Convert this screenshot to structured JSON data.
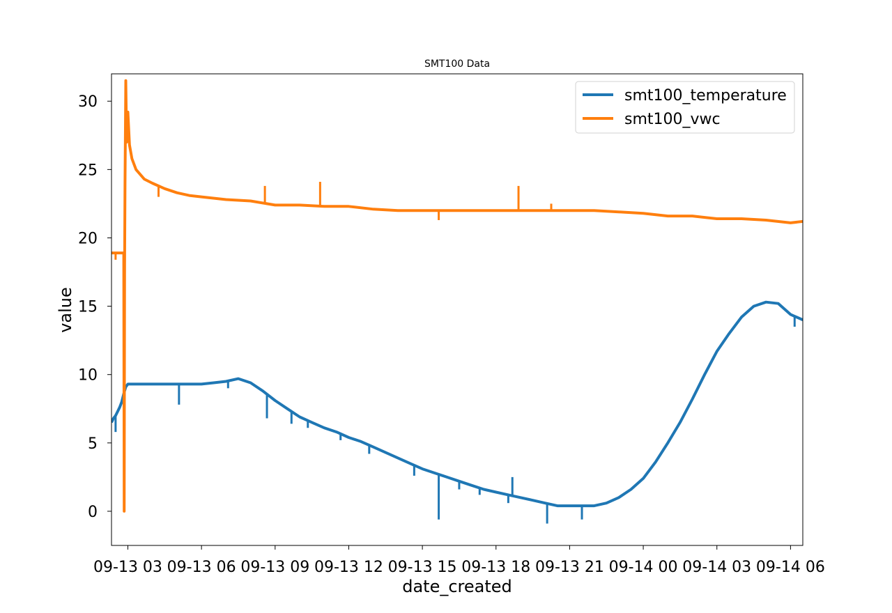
{
  "chart_data": {
    "type": "line",
    "title": "SMT100 Data",
    "xlabel": "date_created",
    "ylabel": "value",
    "xlim": [
      "2023-09-13T02:20",
      "2023-09-14T06:30"
    ],
    "ylim": [
      -2.5,
      32
    ],
    "x_ticks": [
      "09-13 03",
      "09-13 06",
      "09-13 09",
      "09-13 12",
      "09-13 15",
      "09-13 18",
      "09-13 21",
      "09-14 00",
      "09-14 03",
      "09-14 06"
    ],
    "y_ticks": [
      "0",
      "5",
      "10",
      "15",
      "20",
      "25",
      "30"
    ],
    "grid": false,
    "legend_position": "upper right",
    "series": [
      {
        "name": "smt100_temperature",
        "color": "#1f77b4",
        "points": [
          [
            "2023-09-13T02:20",
            6.5
          ],
          [
            "2023-09-13T02:25",
            6.8
          ],
          [
            "2023-09-13T02:30",
            7.0
          ],
          [
            "2023-09-13T02:35",
            7.3
          ],
          [
            "2023-09-13T02:40",
            7.6
          ],
          [
            "2023-09-13T02:45",
            8.0
          ],
          [
            "2023-09-13T02:50",
            8.6
          ],
          [
            "2023-09-13T02:55",
            9.1
          ],
          [
            "2023-09-13T03:00",
            9.3
          ],
          [
            "2023-09-13T03:30",
            9.3
          ],
          [
            "2023-09-13T04:00",
            9.3
          ],
          [
            "2023-09-13T04:30",
            9.3
          ],
          [
            "2023-09-13T05:00",
            9.3
          ],
          [
            "2023-09-13T05:30",
            9.3
          ],
          [
            "2023-09-13T06:00",
            9.3
          ],
          [
            "2023-09-13T06:30",
            9.4
          ],
          [
            "2023-09-13T07:00",
            9.5
          ],
          [
            "2023-09-13T07:30",
            9.7
          ],
          [
            "2023-09-13T08:00",
            9.4
          ],
          [
            "2023-09-13T08:30",
            8.8
          ],
          [
            "2023-09-13T09:00",
            8.1
          ],
          [
            "2023-09-13T09:30",
            7.5
          ],
          [
            "2023-09-13T10:00",
            6.9
          ],
          [
            "2023-09-13T10:30",
            6.5
          ],
          [
            "2023-09-13T11:00",
            6.1
          ],
          [
            "2023-09-13T11:30",
            5.8
          ],
          [
            "2023-09-13T12:00",
            5.4
          ],
          [
            "2023-09-13T12:30",
            5.1
          ],
          [
            "2023-09-13T13:00",
            4.7
          ],
          [
            "2023-09-13T13:30",
            4.3
          ],
          [
            "2023-09-13T14:00",
            3.9
          ],
          [
            "2023-09-13T14:30",
            3.5
          ],
          [
            "2023-09-13T15:00",
            3.1
          ],
          [
            "2023-09-13T15:30",
            2.8
          ],
          [
            "2023-09-13T16:00",
            2.5
          ],
          [
            "2023-09-13T16:30",
            2.2
          ],
          [
            "2023-09-13T17:00",
            1.9
          ],
          [
            "2023-09-13T17:30",
            1.6
          ],
          [
            "2023-09-13T18:00",
            1.4
          ],
          [
            "2023-09-13T18:30",
            1.2
          ],
          [
            "2023-09-13T19:00",
            1.0
          ],
          [
            "2023-09-13T19:30",
            0.8
          ],
          [
            "2023-09-13T20:00",
            0.6
          ],
          [
            "2023-09-13T20:30",
            0.4
          ],
          [
            "2023-09-13T21:00",
            0.4
          ],
          [
            "2023-09-13T21:30",
            0.4
          ],
          [
            "2023-09-13T22:00",
            0.4
          ],
          [
            "2023-09-13T22:30",
            0.6
          ],
          [
            "2023-09-13T23:00",
            1.0
          ],
          [
            "2023-09-13T23:30",
            1.6
          ],
          [
            "2023-09-14T00:00",
            2.4
          ],
          [
            "2023-09-14T00:30",
            3.6
          ],
          [
            "2023-09-14T01:00",
            5.0
          ],
          [
            "2023-09-14T01:30",
            6.5
          ],
          [
            "2023-09-14T02:00",
            8.2
          ],
          [
            "2023-09-14T02:30",
            10.0
          ],
          [
            "2023-09-14T03:00",
            11.7
          ],
          [
            "2023-09-14T03:30",
            13.0
          ],
          [
            "2023-09-14T04:00",
            14.2
          ],
          [
            "2023-09-14T04:30",
            15.0
          ],
          [
            "2023-09-14T05:00",
            15.3
          ],
          [
            "2023-09-14T05:30",
            15.2
          ],
          [
            "2023-09-14T06:00",
            14.4
          ],
          [
            "2023-09-14T06:30",
            14.0
          ]
        ],
        "spikes": [
          [
            "2023-09-13T02:30",
            5.8
          ],
          [
            "2023-09-13T05:05",
            7.8
          ],
          [
            "2023-09-13T07:05",
            9.0
          ],
          [
            "2023-09-13T08:40",
            6.8
          ],
          [
            "2023-09-13T09:40",
            6.4
          ],
          [
            "2023-09-13T10:20",
            6.1
          ],
          [
            "2023-09-13T11:40",
            5.2
          ],
          [
            "2023-09-13T12:50",
            4.2
          ],
          [
            "2023-09-13T14:40",
            2.6
          ],
          [
            "2023-09-13T15:40",
            -0.6
          ],
          [
            "2023-09-13T16:30",
            1.6
          ],
          [
            "2023-09-13T17:20",
            1.2
          ],
          [
            "2023-09-13T18:30",
            0.6
          ],
          [
            "2023-09-13T20:05",
            -0.9
          ],
          [
            "2023-09-13T21:30",
            -0.6
          ],
          [
            "2023-09-14T06:10",
            13.5
          ],
          [
            "2023-09-13T18:40",
            2.5
          ]
        ]
      },
      {
        "name": "smt100_vwc",
        "color": "#ff7f0e",
        "points": [
          [
            "2023-09-13T02:20",
            18.9
          ],
          [
            "2023-09-13T02:35",
            18.9
          ],
          [
            "2023-09-13T02:45",
            18.9
          ],
          [
            "2023-09-13T02:50",
            18.9
          ],
          [
            "2023-09-13T02:51",
            0.0
          ],
          [
            "2023-09-13T02:52",
            18.0
          ],
          [
            "2023-09-13T02:53",
            24.0
          ],
          [
            "2023-09-13T02:54",
            28.0
          ],
          [
            "2023-09-13T02:55",
            31.5
          ],
          [
            "2023-09-13T02:57",
            27.0
          ],
          [
            "2023-09-13T03:00",
            29.2
          ],
          [
            "2023-09-13T03:04",
            26.8
          ],
          [
            "2023-09-13T03:10",
            25.8
          ],
          [
            "2023-09-13T03:20",
            25.0
          ],
          [
            "2023-09-13T03:40",
            24.3
          ],
          [
            "2023-09-13T04:00",
            24.0
          ],
          [
            "2023-09-13T04:30",
            23.6
          ],
          [
            "2023-09-13T05:00",
            23.3
          ],
          [
            "2023-09-13T05:30",
            23.1
          ],
          [
            "2023-09-13T06:00",
            23.0
          ],
          [
            "2023-09-13T07:00",
            22.8
          ],
          [
            "2023-09-13T08:00",
            22.7
          ],
          [
            "2023-09-13T09:00",
            22.4
          ],
          [
            "2023-09-13T10:00",
            22.4
          ],
          [
            "2023-09-13T11:00",
            22.3
          ],
          [
            "2023-09-13T12:00",
            22.3
          ],
          [
            "2023-09-13T13:00",
            22.1
          ],
          [
            "2023-09-13T14:00",
            22.0
          ],
          [
            "2023-09-13T15:00",
            22.0
          ],
          [
            "2023-09-13T16:00",
            22.0
          ],
          [
            "2023-09-13T17:00",
            22.0
          ],
          [
            "2023-09-13T18:00",
            22.0
          ],
          [
            "2023-09-13T19:00",
            22.0
          ],
          [
            "2023-09-13T20:00",
            22.0
          ],
          [
            "2023-09-13T21:00",
            22.0
          ],
          [
            "2023-09-13T22:00",
            22.0
          ],
          [
            "2023-09-13T23:00",
            21.9
          ],
          [
            "2023-09-14T00:00",
            21.8
          ],
          [
            "2023-09-14T01:00",
            21.6
          ],
          [
            "2023-09-14T02:00",
            21.6
          ],
          [
            "2023-09-14T03:00",
            21.4
          ],
          [
            "2023-09-14T04:00",
            21.4
          ],
          [
            "2023-09-14T05:00",
            21.3
          ],
          [
            "2023-09-14T06:00",
            21.1
          ],
          [
            "2023-09-14T06:30",
            21.2
          ]
        ],
        "spikes": [
          [
            "2023-09-13T08:35",
            23.8
          ],
          [
            "2023-09-13T10:50",
            24.1
          ],
          [
            "2023-09-13T18:55",
            23.8
          ],
          [
            "2023-09-13T02:30",
            18.4
          ],
          [
            "2023-09-13T15:40",
            21.3
          ],
          [
            "2023-09-13T20:15",
            22.5
          ],
          [
            "2023-09-13T04:15",
            23.0
          ]
        ]
      }
    ]
  }
}
